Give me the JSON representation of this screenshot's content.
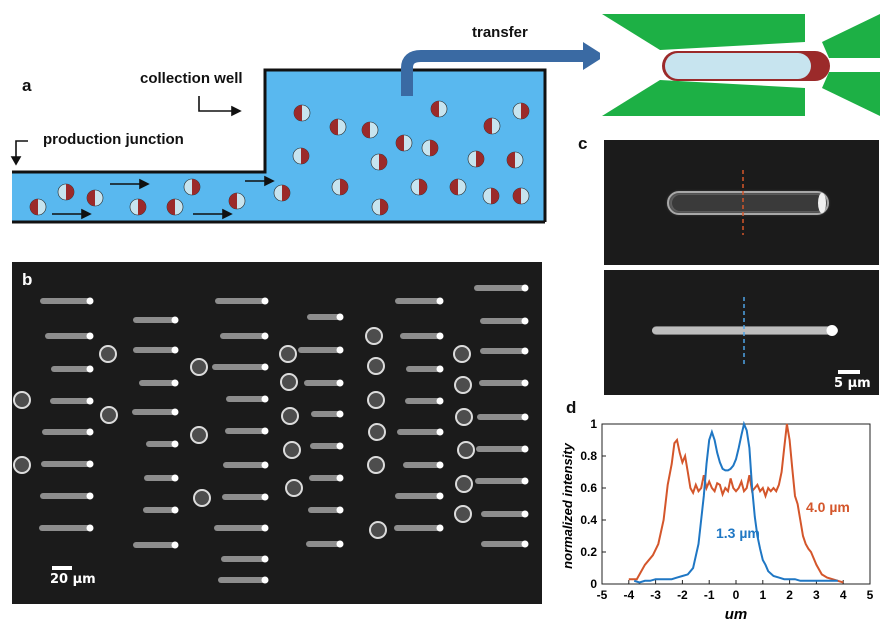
{
  "panels": {
    "a": "a",
    "b": "b",
    "c": "c",
    "d": "d"
  },
  "schematic": {
    "collection_well_label": "collection well",
    "production_junction_label": "production junction",
    "transfer_label": "transfer",
    "colors": {
      "fluid": "#59b8ef",
      "channel_wall": "#111111",
      "arrow": "#3a6aa3",
      "droplet_shell": "#9b2a2a",
      "droplet_core": "#c7e4ef",
      "trap": "#1db045"
    }
  },
  "micrographs": {
    "b_scale_label": "20 µm",
    "c_scale_label": "5 µm"
  },
  "chart_data": {
    "type": "line",
    "title": "",
    "xlabel": "um",
    "ylabel": "normalized intensity",
    "xlim": [
      -5,
      5
    ],
    "ylim": [
      0,
      1
    ],
    "x_ticks": [
      "-5",
      "-4",
      "-3",
      "-2",
      "-1",
      "0",
      "1",
      "2",
      "3",
      "4",
      "5"
    ],
    "y_ticks": [
      "0",
      "0.2",
      "0.4",
      "0.6",
      "0.8",
      "1"
    ],
    "grid": false,
    "annotations": [
      {
        "text": "4.0 µm",
        "color": "#d4562b"
      },
      {
        "text": "1.3 µm",
        "color": "#1f77c4"
      }
    ],
    "series": [
      {
        "color": "#d4562b",
        "x": [
          -4.0,
          -3.7,
          -3.4,
          -3.1,
          -2.9,
          -2.7,
          -2.55,
          -2.4,
          -2.3,
          -2.2,
          -2.1,
          -2.0,
          -1.9,
          -1.8,
          -1.7,
          -1.6,
          -1.5,
          -1.4,
          -1.3,
          -1.2,
          -1.1,
          -1.0,
          -0.9,
          -0.8,
          -0.7,
          -0.6,
          -0.5,
          -0.4,
          -0.3,
          -0.2,
          -0.1,
          0.0,
          0.1,
          0.2,
          0.3,
          0.4,
          0.5,
          0.6,
          0.7,
          0.8,
          0.9,
          1.0,
          1.1,
          1.2,
          1.3,
          1.4,
          1.5,
          1.6,
          1.7,
          1.8,
          1.9,
          2.0,
          2.1,
          2.2,
          2.3,
          2.4,
          2.5,
          2.6,
          2.7,
          2.8,
          2.9,
          3.0,
          3.2,
          3.4,
          3.6,
          3.8,
          4.0
        ],
        "y": [
          0.03,
          0.03,
          0.12,
          0.18,
          0.25,
          0.4,
          0.62,
          0.75,
          0.88,
          0.9,
          0.82,
          0.76,
          0.8,
          0.7,
          0.6,
          0.57,
          0.62,
          0.58,
          0.6,
          0.68,
          0.6,
          0.64,
          0.6,
          0.58,
          0.63,
          0.62,
          0.56,
          0.6,
          0.58,
          0.66,
          0.6,
          0.58,
          0.6,
          0.64,
          0.58,
          0.6,
          0.68,
          0.58,
          0.6,
          0.62,
          0.58,
          0.6,
          0.55,
          0.6,
          0.58,
          0.6,
          0.58,
          0.62,
          0.7,
          0.85,
          1.0,
          0.9,
          0.72,
          0.55,
          0.5,
          0.4,
          0.3,
          0.25,
          0.22,
          0.2,
          0.16,
          0.12,
          0.06,
          0.04,
          0.03,
          0.02,
          0.01
        ]
      },
      {
        "color": "#1f77c4",
        "x": [
          -3.8,
          -3.6,
          -3.4,
          -3.2,
          -3.0,
          -2.8,
          -2.6,
          -2.4,
          -2.2,
          -2.0,
          -1.8,
          -1.6,
          -1.4,
          -1.2,
          -1.1,
          -1.0,
          -0.9,
          -0.8,
          -0.7,
          -0.6,
          -0.5,
          -0.4,
          -0.3,
          -0.2,
          -0.1,
          0.0,
          0.1,
          0.2,
          0.3,
          0.4,
          0.5,
          0.6,
          0.7,
          0.8,
          0.9,
          1.0,
          1.1,
          1.2,
          1.4,
          1.6,
          1.8,
          2.0,
          2.2,
          2.4,
          2.6,
          2.8,
          3.0,
          3.2,
          3.4,
          3.6,
          3.8
        ],
        "y": [
          0.02,
          0.01,
          0.02,
          0.02,
          0.03,
          0.03,
          0.03,
          0.03,
          0.04,
          0.05,
          0.06,
          0.1,
          0.25,
          0.55,
          0.75,
          0.9,
          0.95,
          0.9,
          0.82,
          0.76,
          0.72,
          0.71,
          0.71,
          0.72,
          0.74,
          0.78,
          0.85,
          0.93,
          1.0,
          0.96,
          0.85,
          0.6,
          0.42,
          0.3,
          0.22,
          0.15,
          0.12,
          0.08,
          0.05,
          0.04,
          0.03,
          0.03,
          0.03,
          0.02,
          0.02,
          0.02,
          0.02,
          0.02,
          0.02,
          0.02,
          0.02
        ]
      }
    ]
  }
}
